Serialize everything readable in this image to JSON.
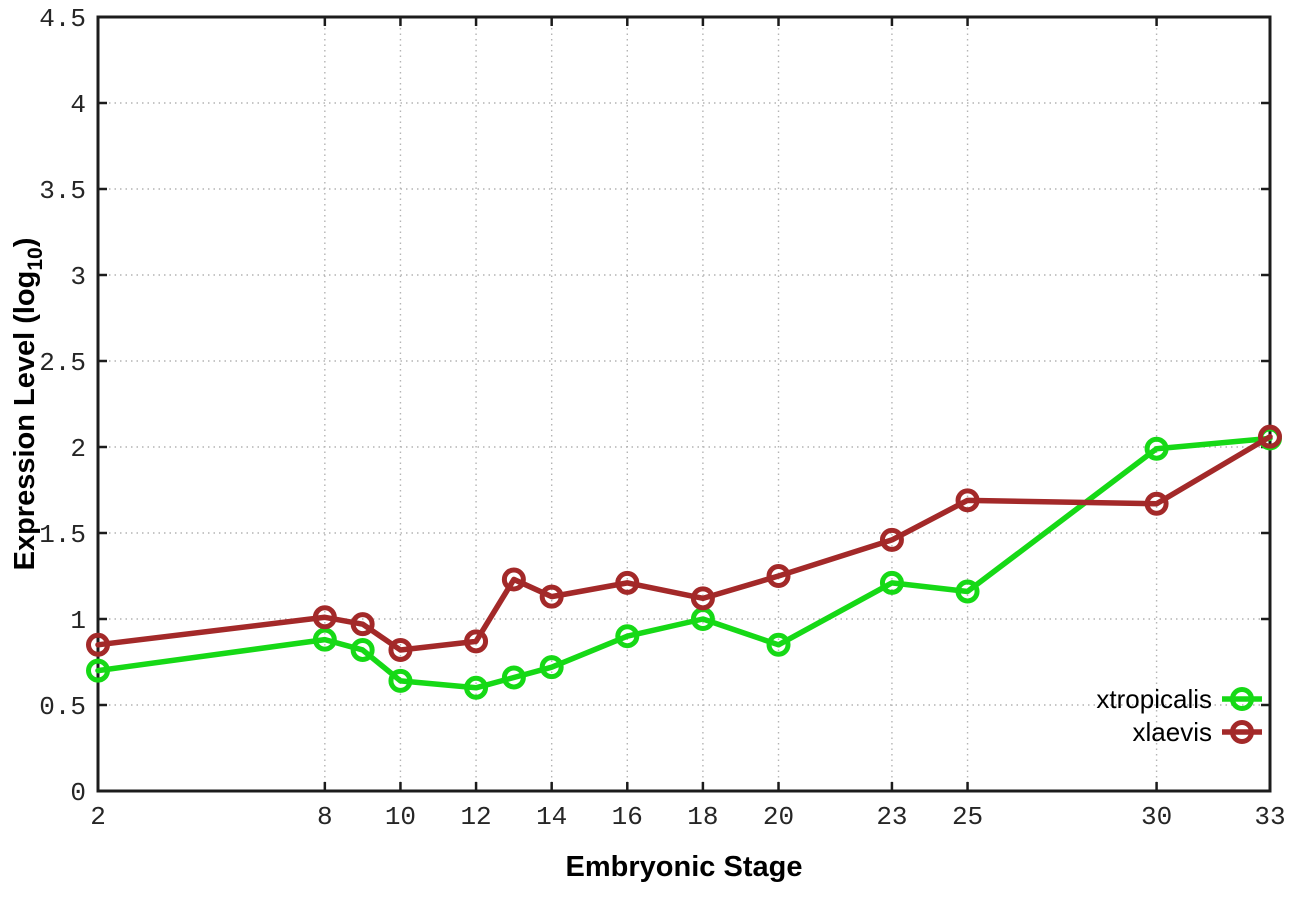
{
  "chart_data": {
    "type": "line",
    "title": "",
    "xlabel": "Embryonic Stage",
    "ylabel": {
      "prefix": "Expression Level (log",
      "sub": "10",
      "suffix": ")"
    },
    "x": [
      2,
      8,
      9,
      10,
      12,
      13,
      14,
      16,
      18,
      20,
      23,
      25,
      30,
      33
    ],
    "series": [
      {
        "name": "xtropicalis",
        "color": "#16d916",
        "values": [
          0.7,
          0.88,
          0.82,
          0.64,
          0.6,
          0.66,
          0.72,
          0.9,
          1.0,
          0.85,
          1.21,
          1.16,
          1.99,
          2.05
        ]
      },
      {
        "name": "xlaevis",
        "color": "#a32929",
        "values": [
          0.85,
          1.01,
          0.97,
          0.82,
          0.87,
          1.23,
          1.13,
          1.21,
          1.12,
          1.25,
          1.46,
          1.69,
          1.67,
          2.06
        ]
      }
    ],
    "xlim": [
      2,
      33
    ],
    "ylim": [
      0,
      4.5
    ],
    "x_ticks": [
      2,
      8,
      10,
      12,
      14,
      16,
      18,
      20,
      23,
      25,
      30,
      33
    ],
    "x_tick_labels": [
      "2",
      "8",
      "10",
      "12",
      "14",
      "16",
      "18",
      "20",
      "23",
      "25",
      "30",
      "33"
    ],
    "y_ticks": [
      0,
      0.5,
      1,
      1.5,
      2,
      2.5,
      3,
      3.5,
      4,
      4.5
    ],
    "y_tick_labels": [
      "0",
      "0.5",
      "1",
      "1.5",
      "2",
      "2.5",
      "3",
      "3.5",
      "4",
      "4.5"
    ],
    "grid": true,
    "legend_position": "bottom-right",
    "marker": "open-circle",
    "colors": {
      "background": "#ffffff",
      "border": "#1c1c1c",
      "grid": "#b4b4b4",
      "tick_text": "#262626",
      "label_text": "#000000"
    }
  }
}
